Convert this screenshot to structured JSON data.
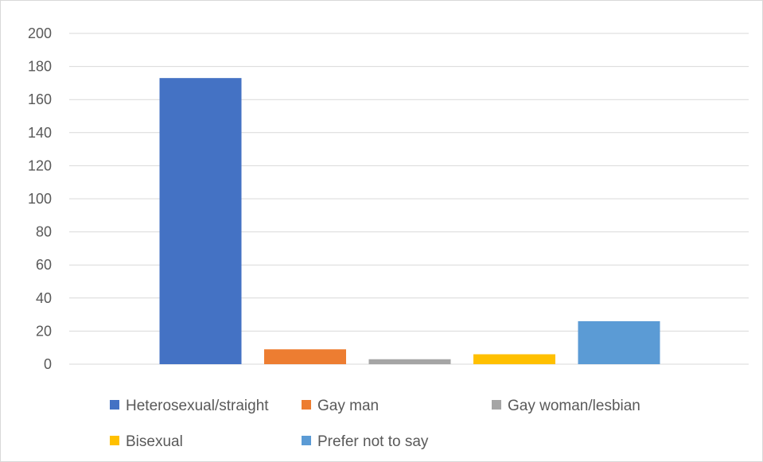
{
  "chart_data": {
    "type": "bar",
    "title": "",
    "xlabel": "",
    "ylabel": "",
    "ylim": [
      0,
      200
    ],
    "y_ticks": [
      0,
      20,
      40,
      60,
      80,
      100,
      120,
      140,
      160,
      180,
      200
    ],
    "grid": true,
    "legend_position": "bottom",
    "series": [
      {
        "name": "Heterosexual/straight",
        "value": 173,
        "color": "#4472C4"
      },
      {
        "name": "Gay man",
        "value": 9,
        "color": "#ED7D31"
      },
      {
        "name": "Gay woman/lesbian",
        "value": 3,
        "color": "#A5A5A5"
      },
      {
        "name": "Bisexual",
        "value": 6,
        "color": "#FFC000"
      },
      {
        "name": "Prefer not to say",
        "value": 26,
        "color": "#5B9BD5"
      }
    ]
  }
}
